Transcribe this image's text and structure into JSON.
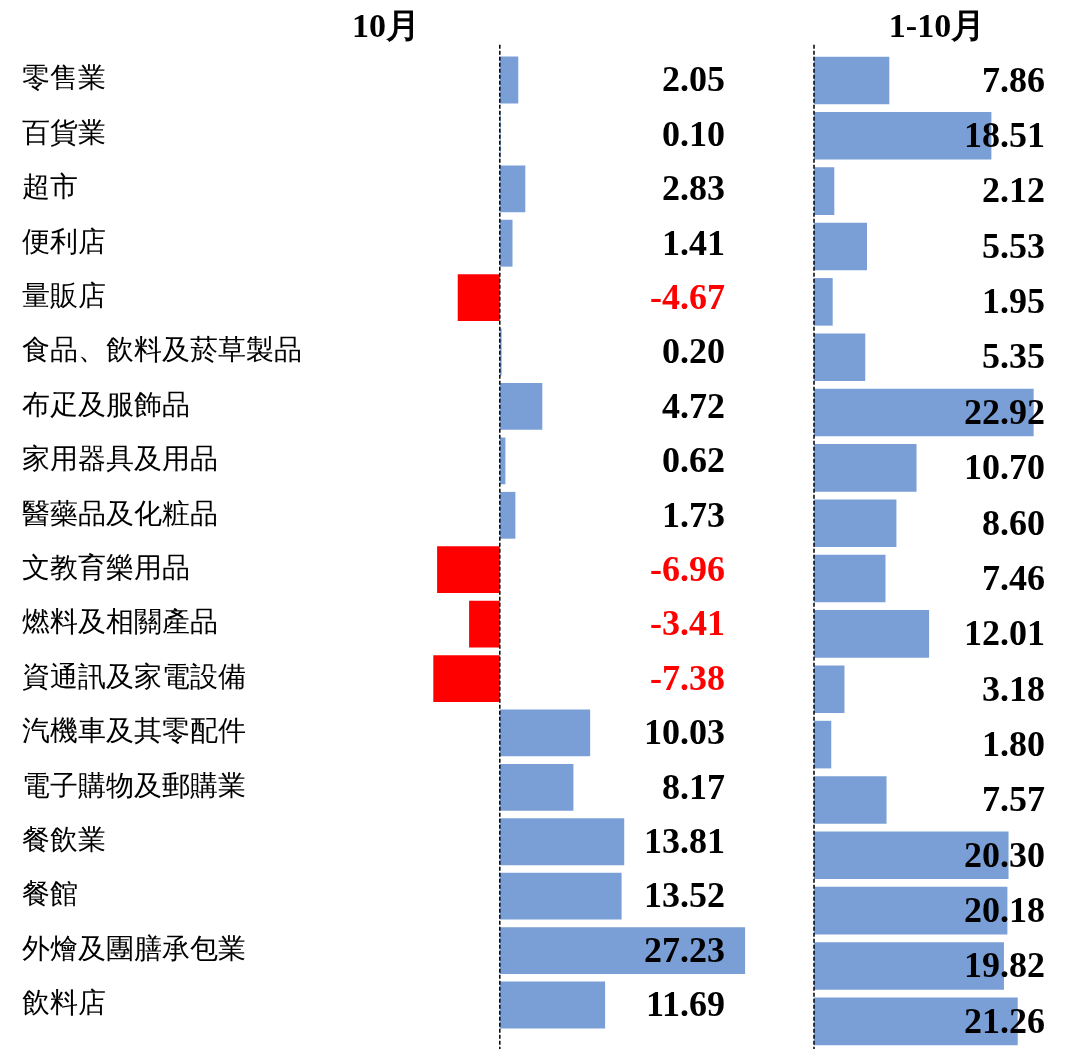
{
  "chart_data": [
    {
      "type": "bar",
      "orientation": "horizontal",
      "title": "10月",
      "categories": [
        "零售業",
        "百貨業",
        "超市",
        "便利店",
        "量販店",
        "食品、飲料及菸草製品",
        "布疋及服飾品",
        "家用器具及用品",
        "醫藥品及化粧品",
        "文教育樂用品",
        "燃料及相關產品",
        "資通訊及家電設備",
        "汽機車及其零配件",
        "電子購物及郵購業",
        "餐飲業",
        "餐館",
        "外燴及團膳承包業",
        "飲料店"
      ],
      "values": [
        2.05,
        0.1,
        2.83,
        1.41,
        -4.67,
        0.2,
        4.72,
        0.62,
        1.73,
        -6.96,
        -3.41,
        -7.38,
        10.03,
        8.17,
        13.81,
        13.52,
        27.23,
        11.69
      ],
      "colors": [
        "#7a9fd6",
        "#7a9fd6",
        "#7a9fd6",
        "#7a9fd6",
        "#ff0000",
        "#7a9fd6",
        "#7a9fd6",
        "#7a9fd6",
        "#7a9fd6",
        "#ff0000",
        "#ff0000",
        "#ff0000",
        "#7a9fd6",
        "#7a9fd6",
        "#7a9fd6",
        "#7a9fd6",
        "#7a9fd6",
        "#7a9fd6"
      ],
      "value_labels": [
        "2.05",
        "0.10",
        "2.83",
        "1.41",
        "-4.67",
        "0.20",
        "4.72",
        "0.62",
        "1.73",
        "-6.96",
        "-3.41",
        "-7.38",
        "10.03",
        "8.17",
        "13.81",
        "13.52",
        "27.23",
        "11.69"
      ],
      "tick_labels": "y",
      "grid": false,
      "legend": false,
      "ref_lines": [
        {
          "axis": "x",
          "value": 0,
          "line_style": "dashed",
          "color": "#000000"
        }
      ]
    },
    {
      "type": "bar",
      "orientation": "horizontal",
      "title": "1-10月",
      "categories": [
        null,
        null,
        null,
        null,
        null,
        null,
        null,
        null,
        null,
        null,
        null,
        null,
        null,
        null,
        null,
        null,
        null,
        null
      ],
      "values": [
        7.86,
        18.51,
        2.12,
        5.53,
        1.95,
        5.35,
        22.92,
        10.7,
        8.6,
        7.46,
        12.01,
        3.18,
        1.8,
        7.57,
        20.3,
        20.18,
        19.82,
        21.26
      ],
      "color": "#7a9fd6",
      "value_labels": [
        "7.86",
        "18.51",
        "2.12",
        "5.53",
        "1.95",
        "5.35",
        "22.92",
        "10.70",
        "8.60",
        "7.46",
        "12.01",
        "3.18",
        "1.80",
        "7.57",
        "20.30",
        "20.18",
        "19.82",
        "21.26"
      ],
      "tick_labels": false,
      "grid": false,
      "legend": false,
      "ref_lines": [
        {
          "axis": "x",
          "value": 0,
          "line_style": "dashed",
          "color": "#000000"
        }
      ]
    }
  ]
}
